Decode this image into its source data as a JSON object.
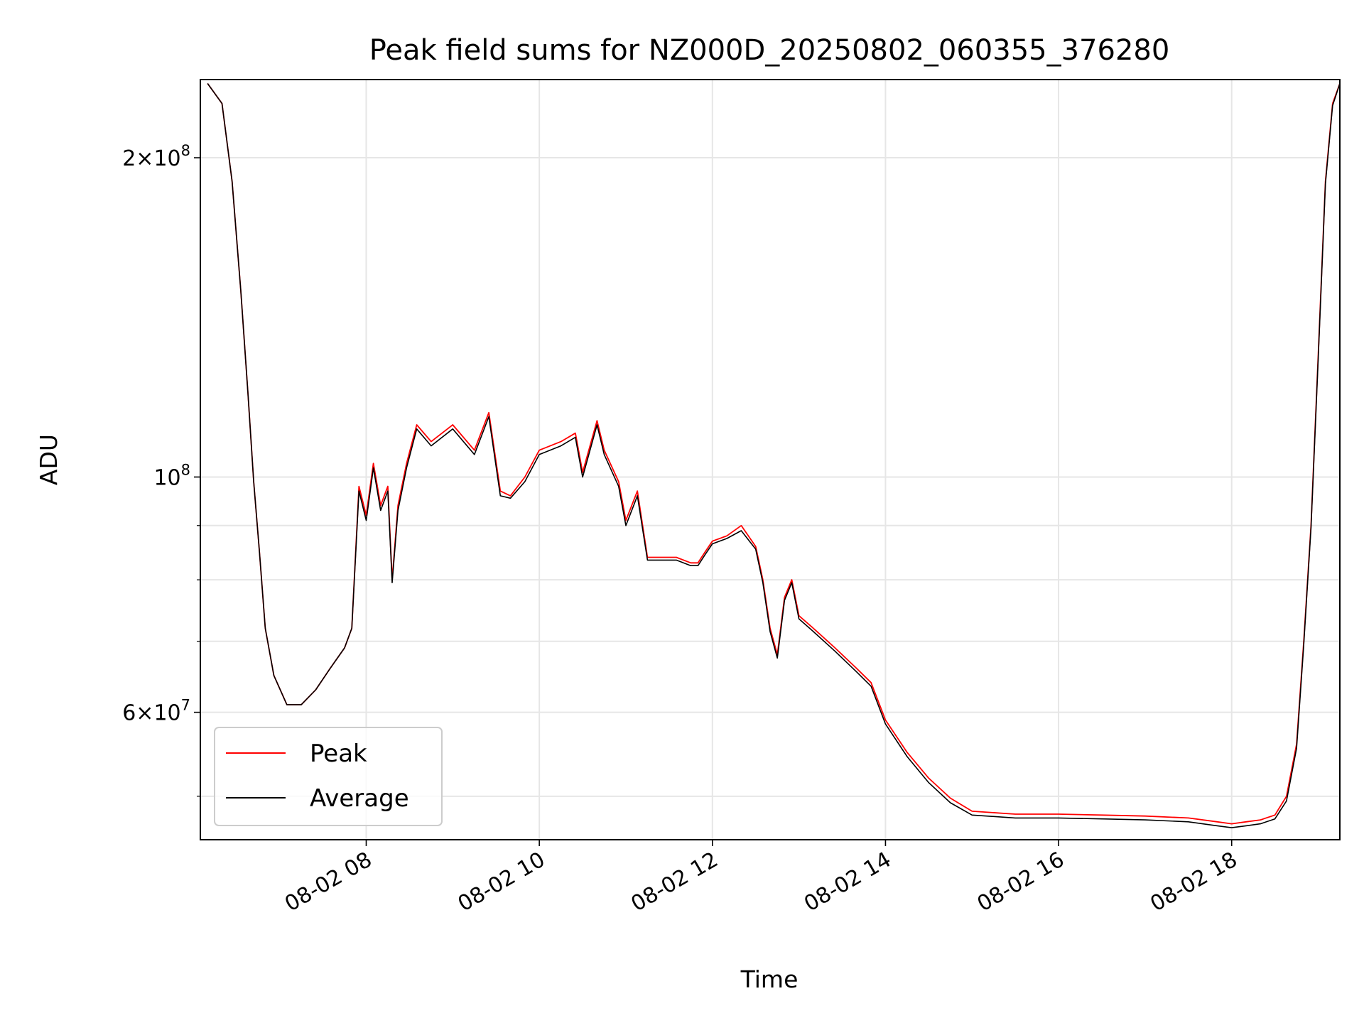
{
  "chart_data": {
    "type": "line",
    "title": "Peak field sums for NZ000D_20250802_060355_376280",
    "xlabel": "Time",
    "ylabel": "ADU",
    "yscale": "log",
    "grid": true,
    "legend_position": "lower-left",
    "xlim": [
      "2025-08-02 06:05",
      "2025-08-02 19:15"
    ],
    "ylim": [
      45500000,
      237000000
    ],
    "x_ticks": [
      "08-02 08",
      "08-02 10",
      "08-02 12",
      "08-02 14",
      "08-02 16",
      "08-02 18"
    ],
    "y_ticks": [
      {
        "value": 200000000,
        "mantissa": "2",
        "exponent": "8"
      },
      {
        "value": 100000000,
        "mantissa": "",
        "exponent": "8"
      },
      {
        "value": 60000000,
        "mantissa": "6",
        "exponent": "7"
      }
    ],
    "y_minor_ticks": [
      50000000,
      70000000,
      80000000,
      90000000
    ],
    "colors": {
      "peak": "#ff0000",
      "average": "#000000"
    },
    "series": [
      {
        "name": "Peak",
        "color": "#ff0000",
        "x": [
          "2025-08-02 06:10",
          "2025-08-02 06:20",
          "2025-08-02 06:27",
          "2025-08-02 06:33",
          "2025-08-02 06:38",
          "2025-08-02 06:42",
          "2025-08-02 06:46",
          "2025-08-02 06:50",
          "2025-08-02 06:56",
          "2025-08-02 07:05",
          "2025-08-02 07:15",
          "2025-08-02 07:25",
          "2025-08-02 07:35",
          "2025-08-02 07:45",
          "2025-08-02 07:50",
          "2025-08-02 07:55",
          "2025-08-02 08:00",
          "2025-08-02 08:05",
          "2025-08-02 08:10",
          "2025-08-02 08:15",
          "2025-08-02 08:18",
          "2025-08-02 08:22",
          "2025-08-02 08:28",
          "2025-08-02 08:35",
          "2025-08-02 08:45",
          "2025-08-02 09:00",
          "2025-08-02 09:15",
          "2025-08-02 09:25",
          "2025-08-02 09:33",
          "2025-08-02 09:40",
          "2025-08-02 09:50",
          "2025-08-02 10:00",
          "2025-08-02 10:15",
          "2025-08-02 10:25",
          "2025-08-02 10:30",
          "2025-08-02 10:40",
          "2025-08-02 10:45",
          "2025-08-02 10:55",
          "2025-08-02 11:00",
          "2025-08-02 11:08",
          "2025-08-02 11:15",
          "2025-08-02 11:25",
          "2025-08-02 11:35",
          "2025-08-02 11:45",
          "2025-08-02 11:50",
          "2025-08-02 11:55",
          "2025-08-02 12:00",
          "2025-08-02 12:10",
          "2025-08-02 12:20",
          "2025-08-02 12:30",
          "2025-08-02 12:35",
          "2025-08-02 12:40",
          "2025-08-02 12:45",
          "2025-08-02 12:50",
          "2025-08-02 12:55",
          "2025-08-02 13:00",
          "2025-08-02 13:10",
          "2025-08-02 13:25",
          "2025-08-02 13:40",
          "2025-08-02 13:50",
          "2025-08-02 14:00",
          "2025-08-02 14:15",
          "2025-08-02 14:30",
          "2025-08-02 14:45",
          "2025-08-02 15:00",
          "2025-08-02 15:30",
          "2025-08-02 16:00",
          "2025-08-02 16:30",
          "2025-08-02 17:00",
          "2025-08-02 17:30",
          "2025-08-02 17:50",
          "2025-08-02 18:00",
          "2025-08-02 18:10",
          "2025-08-02 18:20",
          "2025-08-02 18:30",
          "2025-08-02 18:38",
          "2025-08-02 18:45",
          "2025-08-02 18:50",
          "2025-08-02 18:55",
          "2025-08-02 19:00",
          "2025-08-02 19:05",
          "2025-08-02 19:10",
          "2025-08-02 19:15"
        ],
        "values": [
          235000000,
          225000000,
          190000000,
          150000000,
          120000000,
          99000000,
          85000000,
          72000000,
          65000000,
          61000000,
          61000000,
          63000000,
          66000000,
          69000000,
          72000000,
          98000000,
          92000000,
          103000000,
          94000000,
          98000000,
          80000000,
          94000000,
          103000000,
          112000000,
          108000000,
          112000000,
          106000000,
          115000000,
          97000000,
          96000000,
          100000000,
          106000000,
          108000000,
          110000000,
          101000000,
          113000000,
          106000000,
          99000000,
          91000000,
          97000000,
          84000000,
          84000000,
          84000000,
          83000000,
          83000000,
          85000000,
          87000000,
          88000000,
          90000000,
          86000000,
          80000000,
          72000000,
          68000000,
          77000000,
          80000000,
          74000000,
          72000000,
          69000000,
          66000000,
          64000000,
          59000000,
          55000000,
          52000000,
          49800000,
          48400000,
          48100000,
          48100000,
          48000000,
          47900000,
          47700000,
          47300000,
          47100000,
          47300000,
          47500000,
          48000000,
          50000000,
          56000000,
          70000000,
          90000000,
          130000000,
          190000000,
          225000000,
          235000000
        ]
      },
      {
        "name": "Average",
        "color": "#000000",
        "x": [
          "2025-08-02 06:10",
          "2025-08-02 06:20",
          "2025-08-02 06:27",
          "2025-08-02 06:33",
          "2025-08-02 06:38",
          "2025-08-02 06:42",
          "2025-08-02 06:46",
          "2025-08-02 06:50",
          "2025-08-02 06:56",
          "2025-08-02 07:05",
          "2025-08-02 07:15",
          "2025-08-02 07:25",
          "2025-08-02 07:35",
          "2025-08-02 07:45",
          "2025-08-02 07:50",
          "2025-08-02 07:55",
          "2025-08-02 08:00",
          "2025-08-02 08:05",
          "2025-08-02 08:10",
          "2025-08-02 08:15",
          "2025-08-02 08:18",
          "2025-08-02 08:22",
          "2025-08-02 08:28",
          "2025-08-02 08:35",
          "2025-08-02 08:45",
          "2025-08-02 09:00",
          "2025-08-02 09:15",
          "2025-08-02 09:25",
          "2025-08-02 09:33",
          "2025-08-02 09:40",
          "2025-08-02 09:50",
          "2025-08-02 10:00",
          "2025-08-02 10:15",
          "2025-08-02 10:25",
          "2025-08-02 10:30",
          "2025-08-02 10:40",
          "2025-08-02 10:45",
          "2025-08-02 10:55",
          "2025-08-02 11:00",
          "2025-08-02 11:08",
          "2025-08-02 11:15",
          "2025-08-02 11:25",
          "2025-08-02 11:35",
          "2025-08-02 11:45",
          "2025-08-02 11:50",
          "2025-08-02 11:55",
          "2025-08-02 12:00",
          "2025-08-02 12:10",
          "2025-08-02 12:20",
          "2025-08-02 12:30",
          "2025-08-02 12:35",
          "2025-08-02 12:40",
          "2025-08-02 12:45",
          "2025-08-02 12:50",
          "2025-08-02 12:55",
          "2025-08-02 13:00",
          "2025-08-02 13:10",
          "2025-08-02 13:25",
          "2025-08-02 13:40",
          "2025-08-02 13:50",
          "2025-08-02 14:00",
          "2025-08-02 14:15",
          "2025-08-02 14:30",
          "2025-08-02 14:45",
          "2025-08-02 15:00",
          "2025-08-02 15:30",
          "2025-08-02 16:00",
          "2025-08-02 16:30",
          "2025-08-02 17:00",
          "2025-08-02 17:30",
          "2025-08-02 17:50",
          "2025-08-02 18:00",
          "2025-08-02 18:10",
          "2025-08-02 18:20",
          "2025-08-02 18:30",
          "2025-08-02 18:38",
          "2025-08-02 18:45",
          "2025-08-02 18:50",
          "2025-08-02 18:55",
          "2025-08-02 19:00",
          "2025-08-02 19:05",
          "2025-08-02 19:10",
          "2025-08-02 19:15"
        ],
        "values": [
          235000000,
          225000000,
          190000000,
          150000000,
          120000000,
          99000000,
          85000000,
          72000000,
          65000000,
          61000000,
          61000000,
          63000000,
          66000000,
          69000000,
          72000000,
          97000000,
          91000000,
          102000000,
          93000000,
          97000000,
          79500000,
          93000000,
          102000000,
          111000000,
          107000000,
          111000000,
          105000000,
          114000000,
          96000000,
          95500000,
          99000000,
          105000000,
          107000000,
          109000000,
          100000000,
          112000000,
          105000000,
          98000000,
          90000000,
          96000000,
          83500000,
          83500000,
          83500000,
          82500000,
          82500000,
          84500000,
          86500000,
          87500000,
          89000000,
          85500000,
          79500000,
          71500000,
          67500000,
          76500000,
          79500000,
          73500000,
          71500000,
          68500000,
          65500000,
          63500000,
          58500000,
          54500000,
          51500000,
          49300000,
          48000000,
          47700000,
          47700000,
          47600000,
          47500000,
          47300000,
          46900000,
          46700000,
          46900000,
          47100000,
          47600000,
          49500000,
          55500000,
          69500000,
          89500000,
          129000000,
          189000000,
          224000000,
          235000000
        ]
      }
    ]
  }
}
